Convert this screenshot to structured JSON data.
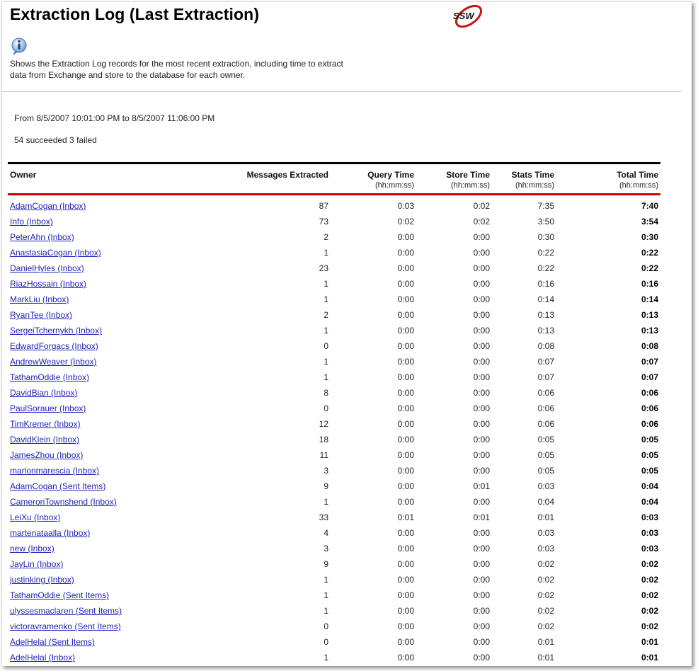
{
  "page": {
    "title": "Extraction Log (Last Extraction)",
    "description": "Shows the Extraction Log records for the most recent extraction, including time to extract data from Exchange and store to the database for each owner.",
    "date_range": "From 8/5/2007 10:01:00 PM to 8/5/2007 11:06:00 PM",
    "summary": "54 succeeded 3 failed",
    "logo_text": "SSW",
    "info_icon": "info-icon"
  },
  "table": {
    "headers": {
      "owner": "Owner",
      "messages": "Messages Extracted",
      "query": "Query Time",
      "store": "Store Time",
      "stats": "Stats Time",
      "total": "Total Time"
    },
    "units": {
      "query": "(hh:mm:ss)",
      "store": "(hh:mm:ss)",
      "stats": "(hh:mm:ss)",
      "total": "(hh:mm:ss)"
    },
    "rows": [
      {
        "owner": "AdamCogan (Inbox)",
        "messages": "87",
        "query": "0:03",
        "store": "0:02",
        "stats": "7:35",
        "total": "7:40"
      },
      {
        "owner": "Info (Inbox)",
        "messages": "73",
        "query": "0:02",
        "store": "0:02",
        "stats": "3:50",
        "total": "3:54"
      },
      {
        "owner": "PeterAhn (Inbox)",
        "messages": "2",
        "query": "0:00",
        "store": "0:00",
        "stats": "0:30",
        "total": "0:30"
      },
      {
        "owner": "AnastasiaCogan (Inbox)",
        "messages": "1",
        "query": "0:00",
        "store": "0:00",
        "stats": "0:22",
        "total": "0:22"
      },
      {
        "owner": "DanielHyles (Inbox)",
        "messages": "23",
        "query": "0:00",
        "store": "0:00",
        "stats": "0:22",
        "total": "0:22"
      },
      {
        "owner": "RiazHossain (Inbox)",
        "messages": "1",
        "query": "0:00",
        "store": "0:00",
        "stats": "0:16",
        "total": "0:16"
      },
      {
        "owner": "MarkLiu (Inbox)",
        "messages": "1",
        "query": "0:00",
        "store": "0:00",
        "stats": "0:14",
        "total": "0:14"
      },
      {
        "owner": "RyanTee (Inbox)",
        "messages": "2",
        "query": "0:00",
        "store": "0:00",
        "stats": "0:13",
        "total": "0:13"
      },
      {
        "owner": "SergeiTchernykh (Inbox)",
        "messages": "1",
        "query": "0:00",
        "store": "0:00",
        "stats": "0:13",
        "total": "0:13"
      },
      {
        "owner": "EdwardForgacs (Inbox)",
        "messages": "0",
        "query": "0:00",
        "store": "0:00",
        "stats": "0:08",
        "total": "0:08"
      },
      {
        "owner": "AndrewWeaver (Inbox)",
        "messages": "1",
        "query": "0:00",
        "store": "0:00",
        "stats": "0:07",
        "total": "0:07"
      },
      {
        "owner": "TathamOddie (Inbox)",
        "messages": "1",
        "query": "0:00",
        "store": "0:00",
        "stats": "0:07",
        "total": "0:07"
      },
      {
        "owner": "DavidBian (Inbox)",
        "messages": "8",
        "query": "0:00",
        "store": "0:00",
        "stats": "0:06",
        "total": "0:06"
      },
      {
        "owner": "PaulSorauer (Inbox)",
        "messages": "0",
        "query": "0:00",
        "store": "0:00",
        "stats": "0:06",
        "total": "0:06"
      },
      {
        "owner": "TimKremer (Inbox)",
        "messages": "12",
        "query": "0:00",
        "store": "0:00",
        "stats": "0:06",
        "total": "0:06"
      },
      {
        "owner": "DavidKlein (Inbox)",
        "messages": "18",
        "query": "0:00",
        "store": "0:00",
        "stats": "0:05",
        "total": "0:05"
      },
      {
        "owner": "JamesZhou (Inbox)",
        "messages": "11",
        "query": "0:00",
        "store": "0:00",
        "stats": "0:05",
        "total": "0:05"
      },
      {
        "owner": "marlonmarescia (Inbox)",
        "messages": "3",
        "query": "0:00",
        "store": "0:00",
        "stats": "0:05",
        "total": "0:05"
      },
      {
        "owner": "AdamCogan (Sent Items)",
        "messages": "9",
        "query": "0:00",
        "store": "0:01",
        "stats": "0:03",
        "total": "0:04"
      },
      {
        "owner": "CameronTownshend (Inbox)",
        "messages": "1",
        "query": "0:00",
        "store": "0:00",
        "stats": "0:04",
        "total": "0:04"
      },
      {
        "owner": "LeiXu (Inbox)",
        "messages": "33",
        "query": "0:01",
        "store": "0:01",
        "stats": "0:01",
        "total": "0:03"
      },
      {
        "owner": "martenataalla (Inbox)",
        "messages": "4",
        "query": "0:00",
        "store": "0:00",
        "stats": "0:03",
        "total": "0:03"
      },
      {
        "owner": "new (Inbox)",
        "messages": "3",
        "query": "0:00",
        "store": "0:00",
        "stats": "0:03",
        "total": "0:03"
      },
      {
        "owner": "JayLin (Inbox)",
        "messages": "9",
        "query": "0:00",
        "store": "0:00",
        "stats": "0:02",
        "total": "0:02"
      },
      {
        "owner": "justinking (Inbox)",
        "messages": "1",
        "query": "0:00",
        "store": "0:00",
        "stats": "0:02",
        "total": "0:02"
      },
      {
        "owner": "TathamOddie (Sent Items)",
        "messages": "1",
        "query": "0:00",
        "store": "0:00",
        "stats": "0:02",
        "total": "0:02"
      },
      {
        "owner": "ulyssesmaclaren (Sent Items)",
        "messages": "1",
        "query": "0:00",
        "store": "0:00",
        "stats": "0:02",
        "total": "0:02"
      },
      {
        "owner": "victoravramenko (Sent Items)",
        "messages": "0",
        "query": "0:00",
        "store": "0:00",
        "stats": "0:02",
        "total": "0:02"
      },
      {
        "owner": "AdelHelal (Sent Items)",
        "messages": "0",
        "query": "0:00",
        "store": "0:00",
        "stats": "0:01",
        "total": "0:01"
      },
      {
        "owner": "AdelHelal (Inbox)",
        "messages": "1",
        "query": "0:00",
        "store": "0:00",
        "stats": "0:01",
        "total": "0:01"
      }
    ]
  }
}
